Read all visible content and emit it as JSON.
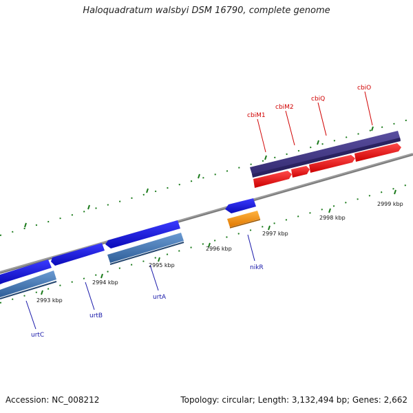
{
  "title": "Haloquadratum walsbyi DSM 16790, complete genome",
  "footer": {
    "accession": "Accession: NC_008212",
    "stats": "Topology: circular; Length: 3,132,494 bp; Genes: 2,662"
  },
  "colors": {
    "backbone": "#8a8a8a",
    "tick": "#1a7a1a",
    "forward_gene": "#ee1111",
    "forward_operon_bar": "#4a3f8c",
    "reverse_gene": "#1111dd",
    "reverse_gene_alt": "#4a7fbf",
    "orange_gene": "#ff9900",
    "label_red": "#d00000",
    "label_blue": "#1515a8"
  },
  "kbp_labels": [
    "2993 kbp",
    "2994 kbp",
    "2995 kbp",
    "2996 kbp",
    "2997 kbp",
    "2998 kbp",
    "2999 kbp"
  ],
  "genes_top": [
    "cbiM1",
    "cbiM2",
    "cbiQ",
    "cbiO"
  ],
  "genes_bottom": [
    "urtC",
    "urtB",
    "urtA",
    "nikR"
  ]
}
